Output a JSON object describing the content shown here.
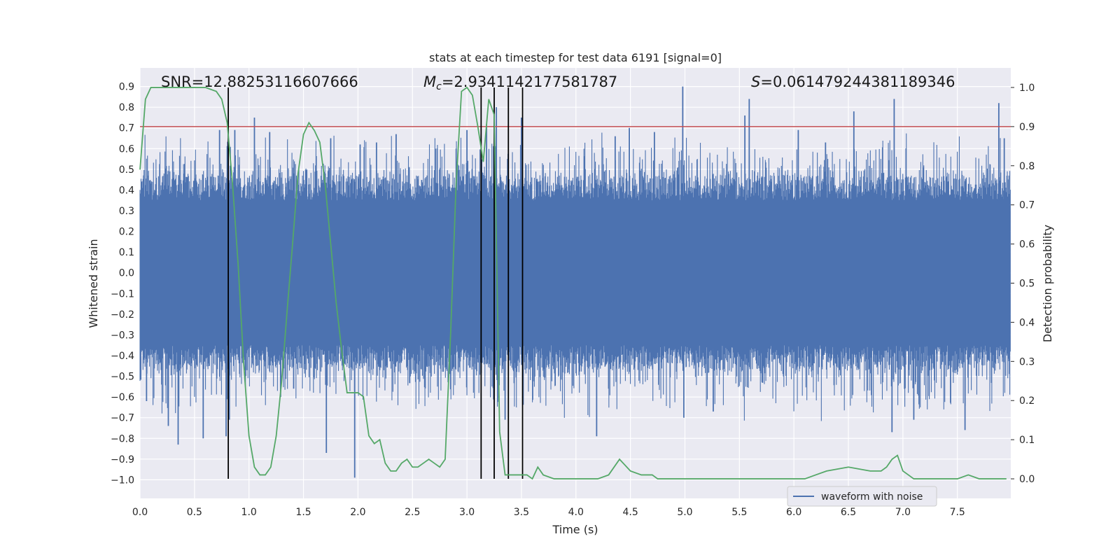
{
  "chart_data": {
    "type": "line",
    "title": "stats at each timestep for test data 6191 [signal=0]",
    "xlabel": "Time (s)",
    "ylabel": "Whitened strain",
    "ylabel_right": "Detection probability",
    "xlim": [
      0.0,
      7.99
    ],
    "ylim": [
      -1.09,
      0.99
    ],
    "ylim_right": [
      -0.05,
      1.05
    ],
    "x_ticks": [
      "0.0",
      "0.5",
      "1.0",
      "1.5",
      "2.0",
      "2.5",
      "3.0",
      "3.5",
      "4.0",
      "4.5",
      "5.0",
      "5.5",
      "6.0",
      "6.5",
      "7.0",
      "7.5"
    ],
    "y_ticks": [
      "0.9",
      "0.8",
      "0.7",
      "0.6",
      "0.5",
      "0.4",
      "0.3",
      "0.2",
      "0.1",
      "0.0",
      "−0.1",
      "−0.2",
      "−0.3",
      "−0.4",
      "−0.5",
      "−0.6",
      "−0.7",
      "−0.8",
      "−0.9",
      "−1.0"
    ],
    "y_ticks_right": [
      "1.0",
      "0.9",
      "0.8",
      "0.7",
      "0.6",
      "0.5",
      "0.4",
      "0.3",
      "0.2",
      "0.1",
      "0.0"
    ],
    "grid": true,
    "legend": {
      "position": "lower-right",
      "entries": [
        {
          "name": "waveform with noise",
          "color": "#4c72b0"
        }
      ]
    },
    "annotations": {
      "snr": "SNR=12.88253116607666",
      "mc_symbol": "M",
      "mc_sub": "c",
      "mc_value": "=2.9341142177581787",
      "s_symbol": "S",
      "s_value": "=0.061479244381189346"
    },
    "threshold": {
      "axis": "right",
      "value": 0.9,
      "color": "#c44e52"
    },
    "vertical_markers": [
      0.81,
      3.13,
      3.25,
      3.38,
      3.51
    ],
    "waveform": {
      "name": "waveform with noise",
      "color": "#4c72b0",
      "axis": "left",
      "sample_rate": 2048,
      "duration_s": 8.0,
      "typical_amplitude": 0.35,
      "peaks": [
        [
          0.06,
          -0.62
        ],
        [
          0.26,
          -0.74
        ],
        [
          0.35,
          -0.83
        ],
        [
          0.58,
          -0.8
        ],
        [
          0.73,
          0.69
        ],
        [
          0.79,
          -0.79
        ],
        [
          0.82,
          -0.71
        ],
        [
          0.87,
          0.69
        ],
        [
          1.05,
          0.75
        ],
        [
          1.19,
          0.68
        ],
        [
          1.29,
          -0.6
        ],
        [
          1.41,
          -0.56
        ],
        [
          1.71,
          -0.87
        ],
        [
          1.75,
          0.65
        ],
        [
          1.97,
          -0.99
        ],
        [
          2.02,
          0.62
        ],
        [
          2.17,
          0.63
        ],
        [
          2.35,
          0.67
        ],
        [
          2.71,
          0.6
        ],
        [
          3.0,
          0.69
        ],
        [
          3.18,
          0.72
        ],
        [
          3.27,
          0.8
        ],
        [
          3.35,
          -0.71
        ],
        [
          3.5,
          0.75
        ],
        [
          4.19,
          -0.79
        ],
        [
          4.36,
          0.66
        ],
        [
          4.49,
          0.7
        ],
        [
          4.72,
          0.68
        ],
        [
          4.98,
          0.9
        ],
        [
          4.99,
          -0.7
        ],
        [
          5.26,
          -0.67
        ],
        [
          5.55,
          0.76
        ],
        [
          5.59,
          0.84
        ],
        [
          6.04,
          0.69
        ],
        [
          6.29,
          0.63
        ],
        [
          6.55,
          0.78
        ],
        [
          6.9,
          -0.77
        ],
        [
          6.92,
          0.84
        ],
        [
          7.1,
          -0.71
        ],
        [
          7.57,
          -0.76
        ],
        [
          7.88,
          0.82
        ],
        [
          7.93,
          0.65
        ]
      ]
    },
    "detection_probability": {
      "color": "#55a868",
      "axis": "right",
      "x": [
        0.0,
        0.05,
        0.1,
        0.2,
        0.3,
        0.4,
        0.5,
        0.6,
        0.7,
        0.75,
        0.8,
        0.85,
        0.9,
        0.95,
        1.0,
        1.05,
        1.1,
        1.15,
        1.2,
        1.25,
        1.3,
        1.35,
        1.4,
        1.45,
        1.5,
        1.55,
        1.6,
        1.65,
        1.7,
        1.75,
        1.8,
        1.85,
        1.9,
        1.95,
        2.0,
        2.05,
        2.1,
        2.15,
        2.2,
        2.25,
        2.3,
        2.35,
        2.4,
        2.45,
        2.5,
        2.55,
        2.6,
        2.65,
        2.7,
        2.75,
        2.8,
        2.85,
        2.9,
        2.95,
        3.0,
        3.05,
        3.1,
        3.15,
        3.2,
        3.25,
        3.3,
        3.35,
        3.4,
        3.45,
        3.5,
        3.55,
        3.6,
        3.65,
        3.7,
        3.8,
        3.9,
        3.95,
        4.0,
        4.05,
        4.1,
        4.2,
        4.3,
        4.4,
        4.5,
        4.6,
        4.7,
        4.75,
        4.8,
        4.85,
        4.9,
        5.0,
        5.1,
        5.2,
        5.3,
        5.4,
        5.5,
        5.6,
        5.7,
        5.8,
        5.9,
        6.0,
        6.1,
        6.2,
        6.3,
        6.5,
        6.7,
        6.8,
        6.85,
        6.9,
        6.95,
        7.0,
        7.05,
        7.1,
        7.15,
        7.2,
        7.25,
        7.3,
        7.35,
        7.4,
        7.5,
        7.6,
        7.7,
        7.8,
        7.9,
        7.95
      ],
      "y": [
        0.79,
        0.97,
        1.0,
        1.0,
        1.0,
        1.0,
        1.0,
        1.0,
        0.99,
        0.97,
        0.91,
        0.75,
        0.55,
        0.3,
        0.11,
        0.03,
        0.01,
        0.01,
        0.03,
        0.11,
        0.25,
        0.43,
        0.6,
        0.78,
        0.88,
        0.91,
        0.89,
        0.86,
        0.75,
        0.6,
        0.45,
        0.33,
        0.22,
        0.22,
        0.22,
        0.21,
        0.11,
        0.09,
        0.1,
        0.04,
        0.02,
        0.02,
        0.04,
        0.05,
        0.03,
        0.03,
        0.04,
        0.05,
        0.04,
        0.03,
        0.05,
        0.37,
        0.75,
        0.99,
        1.0,
        0.98,
        0.9,
        0.81,
        0.97,
        0.93,
        0.12,
        0.01,
        0.01,
        0.01,
        0.01,
        0.01,
        0.0,
        0.03,
        0.01,
        0.0,
        0.0,
        0.0,
        0.0,
        0.0,
        0.0,
        0.0,
        0.01,
        0.05,
        0.02,
        0.01,
        0.01,
        0.0,
        0.0,
        0.0,
        0.0,
        0.0,
        0.0,
        0.0,
        0.0,
        0.0,
        0.0,
        0.0,
        0.0,
        0.0,
        0.0,
        0.0,
        0.0,
        0.01,
        0.02,
        0.03,
        0.02,
        0.02,
        0.03,
        0.05,
        0.06,
        0.02,
        0.01,
        0.0,
        0.0,
        0.0,
        0.0,
        0.0,
        0.0,
        0.0,
        0.0,
        0.01,
        0.0,
        0.0,
        0.0,
        0.0
      ]
    }
  }
}
